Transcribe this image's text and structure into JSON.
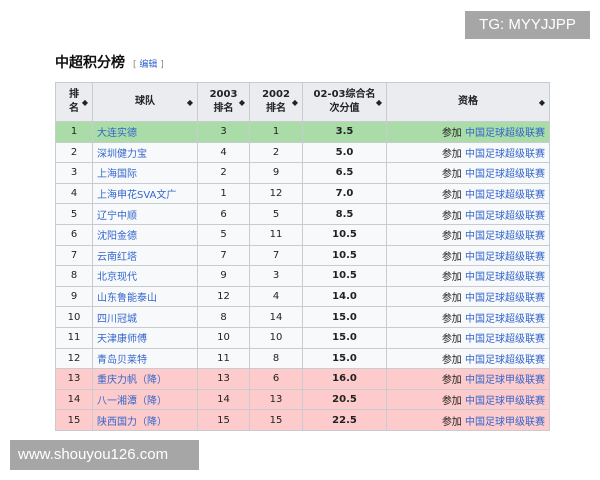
{
  "watermarks": {
    "top": "TG: MYYJJPP",
    "bottom": "www.shouyou126.com"
  },
  "heading": {
    "title": "中超积分榜",
    "edit": "编辑"
  },
  "colors": {
    "promoted": "#aadca8",
    "relegated": "#fdcbcb",
    "link": "#3366cc"
  },
  "columns": [
    "排名",
    "球队",
    "2003排名",
    "2002排名",
    "02-03综合名次分值",
    "资格"
  ],
  "rows": [
    {
      "rank": "1",
      "team": "大连实德",
      "y2003": "3",
      "y2002": "1",
      "score": "3.5",
      "q_prefix": "参加",
      "q_link": "中国足球超级联赛",
      "status": "green"
    },
    {
      "rank": "2",
      "team": "深圳健力宝",
      "y2003": "4",
      "y2002": "2",
      "score": "5.0",
      "q_prefix": "参加",
      "q_link": "中国足球超级联赛",
      "status": ""
    },
    {
      "rank": "3",
      "team": "上海国际",
      "y2003": "2",
      "y2002": "9",
      "score": "6.5",
      "q_prefix": "参加",
      "q_link": "中国足球超级联赛",
      "status": ""
    },
    {
      "rank": "4",
      "team": "上海申花SVA文广",
      "y2003": "1",
      "y2002": "12",
      "score": "7.0",
      "q_prefix": "参加",
      "q_link": "中国足球超级联赛",
      "status": ""
    },
    {
      "rank": "5",
      "team": "辽宁中顺",
      "y2003": "6",
      "y2002": "5",
      "score": "8.5",
      "q_prefix": "参加",
      "q_link": "中国足球超级联赛",
      "status": ""
    },
    {
      "rank": "6",
      "team": "沈阳金德",
      "y2003": "5",
      "y2002": "11",
      "score": "10.5",
      "q_prefix": "参加",
      "q_link": "中国足球超级联赛",
      "status": ""
    },
    {
      "rank": "7",
      "team": "云南红塔",
      "y2003": "7",
      "y2002": "7",
      "score": "10.5",
      "q_prefix": "参加",
      "q_link": "中国足球超级联赛",
      "status": ""
    },
    {
      "rank": "8",
      "team": "北京现代",
      "y2003": "9",
      "y2002": "3",
      "score": "10.5",
      "q_prefix": "参加",
      "q_link": "中国足球超级联赛",
      "status": ""
    },
    {
      "rank": "9",
      "team": "山东鲁能泰山",
      "y2003": "12",
      "y2002": "4",
      "score": "14.0",
      "q_prefix": "参加",
      "q_link": "中国足球超级联赛",
      "status": ""
    },
    {
      "rank": "10",
      "team": "四川冠城",
      "y2003": "8",
      "y2002": "14",
      "score": "15.0",
      "q_prefix": "参加",
      "q_link": "中国足球超级联赛",
      "status": ""
    },
    {
      "rank": "11",
      "team": "天津康师傅",
      "y2003": "10",
      "y2002": "10",
      "score": "15.0",
      "q_prefix": "参加",
      "q_link": "中国足球超级联赛",
      "status": ""
    },
    {
      "rank": "12",
      "team": "青岛贝莱特",
      "y2003": "11",
      "y2002": "8",
      "score": "15.0",
      "q_prefix": "参加",
      "q_link": "中国足球超级联赛",
      "status": ""
    },
    {
      "rank": "13",
      "team": "重庆力帆（降）",
      "y2003": "13",
      "y2002": "6",
      "score": "16.0",
      "q_prefix": "参加",
      "q_link": "中国足球甲级联赛",
      "status": "red"
    },
    {
      "rank": "14",
      "team": "八一湘潭（降）",
      "y2003": "14",
      "y2002": "13",
      "score": "20.5",
      "q_prefix": "参加",
      "q_link": "中国足球甲级联赛",
      "status": "red"
    },
    {
      "rank": "15",
      "team": "陕西国力（降）",
      "y2003": "15",
      "y2002": "15",
      "score": "22.5",
      "q_prefix": "参加",
      "q_link": "中国足球甲级联赛",
      "status": "red"
    }
  ]
}
